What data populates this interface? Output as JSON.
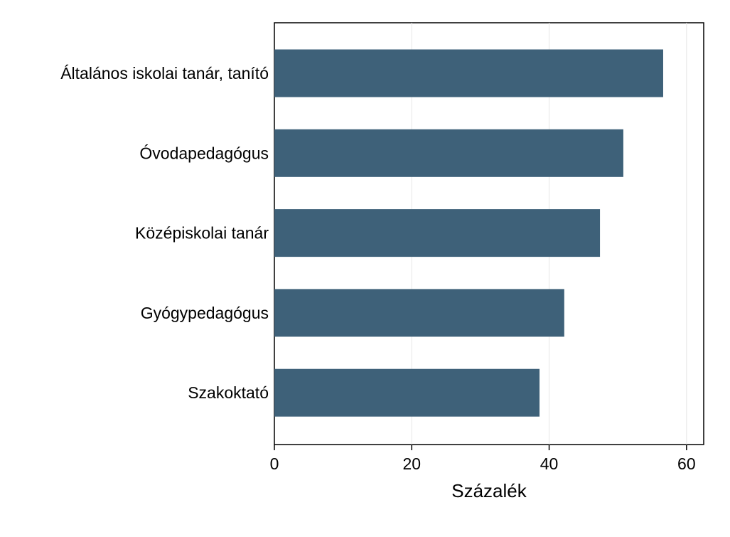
{
  "chart_data": {
    "type": "bar",
    "orientation": "horizontal",
    "categories": [
      "Általános iskolai tanár, tanító",
      "Óvodapedagógus",
      "Középiskolai tanár",
      "Gyógypedagógus",
      "Szakoktató"
    ],
    "values": [
      56.6,
      50.8,
      47.4,
      42.2,
      38.6
    ],
    "xlabel": "Százalék",
    "ylabel": "",
    "xlim": [
      0,
      62.5
    ],
    "xticks": [
      0,
      20,
      40,
      60
    ],
    "xtick_labels": [
      "0",
      "20",
      "40",
      "60"
    ],
    "grid": true,
    "legend": "none",
    "bar_color": "#3e6179",
    "grid_color": "#e6e6e6"
  }
}
